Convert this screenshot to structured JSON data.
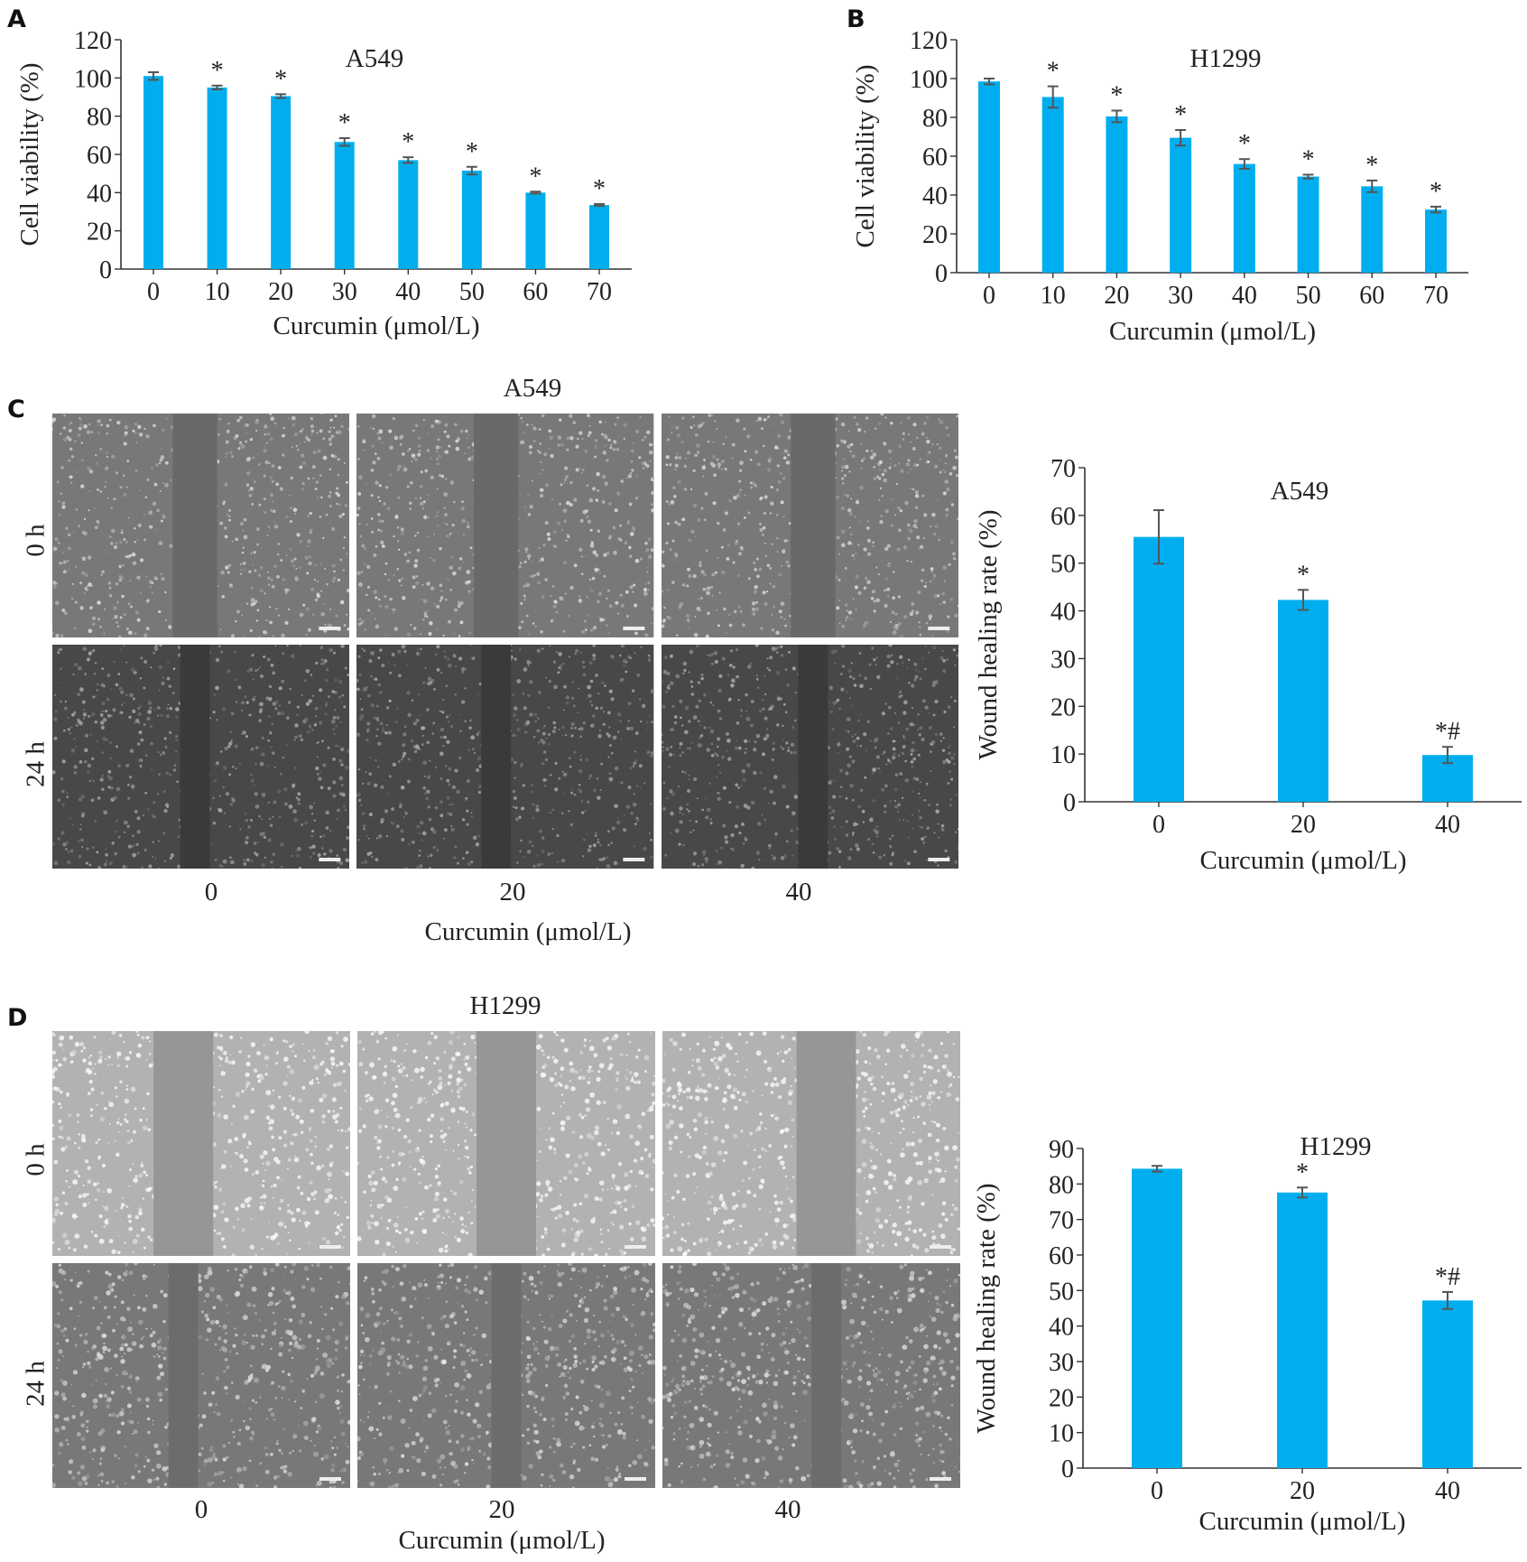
{
  "panels": {
    "A": {
      "letter": "A"
    },
    "B": {
      "letter": "B"
    },
    "C": {
      "letter": "C",
      "image_title": "A549",
      "row_labels": [
        "0 h",
        "24 h"
      ],
      "col_labels": [
        "0",
        "20",
        "40"
      ],
      "xlabel": "Curcumin (μmol/L)"
    },
    "D": {
      "letter": "D",
      "image_title": "H1299",
      "row_labels": [
        "0 h",
        "24 h"
      ],
      "col_labels": [
        "0",
        "20",
        "40"
      ],
      "xlabel": "Curcumin (μmol/L)"
    }
  },
  "colors": {
    "bar": "#00AEEF",
    "error": "#555555",
    "axis": "#333333"
  },
  "chart_data": [
    {
      "id": "A",
      "type": "bar",
      "title": "A549",
      "categories": [
        "0",
        "10",
        "20",
        "30",
        "40",
        "50",
        "60",
        "70"
      ],
      "values": [
        101,
        95,
        90.5,
        66.5,
        57,
        51.5,
        40,
        33.5
      ],
      "errors": [
        2,
        1,
        1,
        2,
        1.5,
        2,
        0.5,
        0.5
      ],
      "marks": [
        "",
        "*",
        "*",
        "*",
        "*",
        "*",
        "*",
        "*"
      ],
      "xlabel": "Curcumin (μmol/L)",
      "ylabel": "Cell viability (%)",
      "ylim": [
        0,
        120
      ],
      "yticks": [
        0,
        20,
        40,
        60,
        80,
        100,
        120
      ]
    },
    {
      "id": "B",
      "type": "bar",
      "title": "H1299",
      "categories": [
        "0",
        "10",
        "20",
        "30",
        "40",
        "50",
        "60",
        "70"
      ],
      "values": [
        98.5,
        90.5,
        80.5,
        69.5,
        56,
        49.5,
        44.5,
        32.5
      ],
      "errors": [
        1.5,
        5.5,
        3,
        4,
        2.5,
        1,
        3,
        1.5
      ],
      "marks": [
        "",
        "*",
        "*",
        "*",
        "*",
        "*",
        "*",
        "*"
      ],
      "xlabel": "Curcumin (μmol/L)",
      "ylabel": "Cell viability (%)",
      "ylim": [
        0,
        120
      ],
      "yticks": [
        0,
        20,
        40,
        60,
        80,
        100,
        120
      ]
    },
    {
      "id": "C",
      "type": "bar",
      "title": "A549",
      "categories": [
        "0",
        "20",
        "40"
      ],
      "values": [
        55.5,
        42.3,
        9.8
      ],
      "errors": [
        5.6,
        2.1,
        1.7
      ],
      "marks": [
        "",
        "*",
        "*#"
      ],
      "xlabel": "Curcumin (μmol/L)",
      "ylabel": "Wound healing rate (%)",
      "ylim": [
        0,
        70
      ],
      "yticks": [
        0,
        10,
        20,
        30,
        40,
        50,
        60,
        70
      ]
    },
    {
      "id": "D",
      "type": "bar",
      "title": "H1299",
      "categories": [
        "0",
        "20",
        "40"
      ],
      "values": [
        84.3,
        77.6,
        47.2
      ],
      "errors": [
        0.8,
        1.4,
        2.4
      ],
      "marks": [
        "",
        "*",
        "*#"
      ],
      "xlabel": "Curcumin (μmol/L)",
      "ylabel": "Wound healing rate (%)",
      "ylim": [
        0,
        90
      ],
      "yticks": [
        0,
        10,
        20,
        30,
        40,
        50,
        60,
        70,
        80,
        90
      ]
    }
  ]
}
